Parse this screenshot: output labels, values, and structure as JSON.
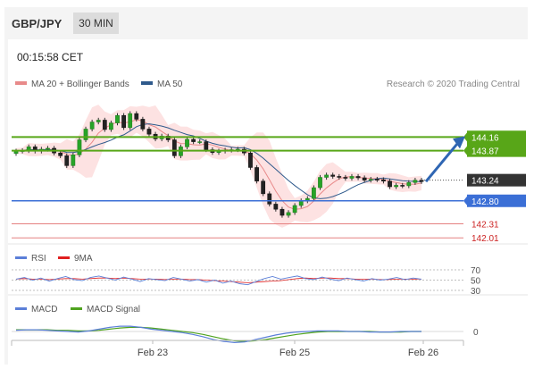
{
  "header": {
    "symbol": "GBP/JPY",
    "timeframe": "30 MIN"
  },
  "time_label": "00:15:58 CET",
  "legend_main": {
    "item1": "MA 20 + Bollinger Bands",
    "item2": "MA 50",
    "credit": "Research © 2020 Trading Central"
  },
  "legend_rsi": {
    "item1": "RSI",
    "item2": "9MA"
  },
  "legend_macd": {
    "item1": "MACD",
    "item2": "MACD Signal"
  },
  "colors": {
    "green_level": "#58a618",
    "blue_level": "#3b6fd6",
    "red_level": "#cc2222",
    "ma20": "#e88a8a",
    "ma50": "#2f5a8c",
    "band": "#fde2e2",
    "rsi": "#5b7fd8",
    "rsi_ma": "#e02020",
    "macd": "#5b7fd8",
    "macd_signal": "#4fa31f",
    "arrow": "#2f66b3"
  },
  "chart_data": [
    {
      "type": "line",
      "title": "GBP/JPY 30 MIN",
      "x_ticks": [
        "Feb 23",
        "Feb 25",
        "Feb 26"
      ],
      "price_levels": [
        {
          "label": "144.16",
          "value": 144.16,
          "style": "resistance"
        },
        {
          "label": "143.87",
          "value": 143.87,
          "style": "resistance"
        },
        {
          "label": "143.24",
          "value": 143.24,
          "style": "current"
        },
        {
          "label": "142.80",
          "value": 142.8,
          "style": "pivot"
        },
        {
          "label": "142.31",
          "value": 142.31,
          "style": "support"
        },
        {
          "label": "142.01",
          "value": 142.01,
          "style": "support"
        }
      ],
      "series": [
        {
          "name": "MA 20 + Bollinger Bands"
        },
        {
          "name": "MA 50"
        }
      ],
      "close": [
        143.86,
        143.87,
        143.95,
        143.86,
        143.9,
        143.92,
        143.82,
        143.76,
        143.55,
        143.78,
        144.1,
        144.33,
        144.48,
        144.52,
        144.32,
        144.46,
        144.62,
        144.36,
        144.66,
        144.54,
        144.33,
        144.22,
        144.12,
        144.18,
        144.1,
        143.76,
        143.95,
        144.11,
        144.06,
        144.06,
        143.89,
        143.83,
        143.86,
        143.88,
        143.89,
        143.9,
        143.82,
        143.51,
        143.22,
        142.95,
        142.73,
        142.62,
        142.49,
        142.55,
        142.7,
        142.8,
        142.85,
        143.08,
        143.3,
        143.35,
        143.32,
        143.3,
        143.28,
        143.32,
        143.29,
        143.24,
        143.26,
        143.25,
        143.22,
        143.1,
        143.13,
        143.12,
        143.19,
        143.24,
        143.21
      ],
      "ylim": [
        141.9,
        145.1
      ]
    },
    {
      "type": "line",
      "title": "RSI",
      "y_ticks": [
        "70",
        "50",
        "30"
      ],
      "series": [
        {
          "name": "RSI",
          "values": [
            52,
            55,
            50,
            54,
            48,
            53,
            57,
            51,
            49,
            55,
            58,
            54,
            50,
            56,
            52,
            47,
            53,
            51,
            49,
            55,
            52,
            48,
            51,
            46,
            50,
            44,
            48,
            43,
            41,
            47,
            53,
            57,
            52,
            55,
            58,
            53,
            51,
            56,
            52,
            49,
            54,
            51,
            48,
            53,
            50,
            52,
            55,
            51,
            54,
            52
          ]
        },
        {
          "name": "9MA",
          "values": [
            52,
            53,
            52,
            52,
            51,
            52,
            53,
            53,
            52,
            53,
            54,
            54,
            53,
            54,
            53,
            52,
            52,
            52,
            51,
            52,
            52,
            51,
            51,
            50,
            49,
            48,
            47,
            46,
            45,
            46,
            47,
            48,
            49,
            51,
            53,
            54,
            53,
            54,
            54,
            53,
            53,
            52,
            52,
            52,
            51,
            51,
            52,
            52,
            52,
            52
          ]
        }
      ]
    },
    {
      "type": "line",
      "title": "MACD",
      "y_ticks": [
        "0"
      ],
      "series": [
        {
          "name": "MACD",
          "values": [
            0.02,
            0.03,
            0.03,
            0.02,
            0.01,
            0.0,
            -0.01,
            0.01,
            0.04,
            0.07,
            0.09,
            0.09,
            0.07,
            0.04,
            0.02,
            0.0,
            -0.02,
            -0.05,
            -0.09,
            -0.14,
            -0.17,
            -0.19,
            -0.18,
            -0.14,
            -0.1,
            -0.06,
            -0.03,
            -0.01,
            0.0,
            0.01,
            0.01,
            0.01,
            0.0,
            0.0,
            -0.01,
            -0.01,
            -0.01,
            0.0,
            0.0,
            0.0
          ]
        },
        {
          "name": "MACD Signal",
          "values": [
            0.03,
            0.03,
            0.03,
            0.03,
            0.02,
            0.02,
            0.01,
            0.01,
            0.02,
            0.04,
            0.06,
            0.07,
            0.07,
            0.06,
            0.04,
            0.02,
            0.0,
            -0.02,
            -0.05,
            -0.09,
            -0.13,
            -0.16,
            -0.17,
            -0.16,
            -0.14,
            -0.11,
            -0.08,
            -0.05,
            -0.03,
            -0.01,
            0.0,
            0.0,
            0.0,
            0.0,
            0.0,
            -0.01,
            -0.01,
            -0.01,
            0.0,
            0.0
          ]
        }
      ]
    }
  ]
}
